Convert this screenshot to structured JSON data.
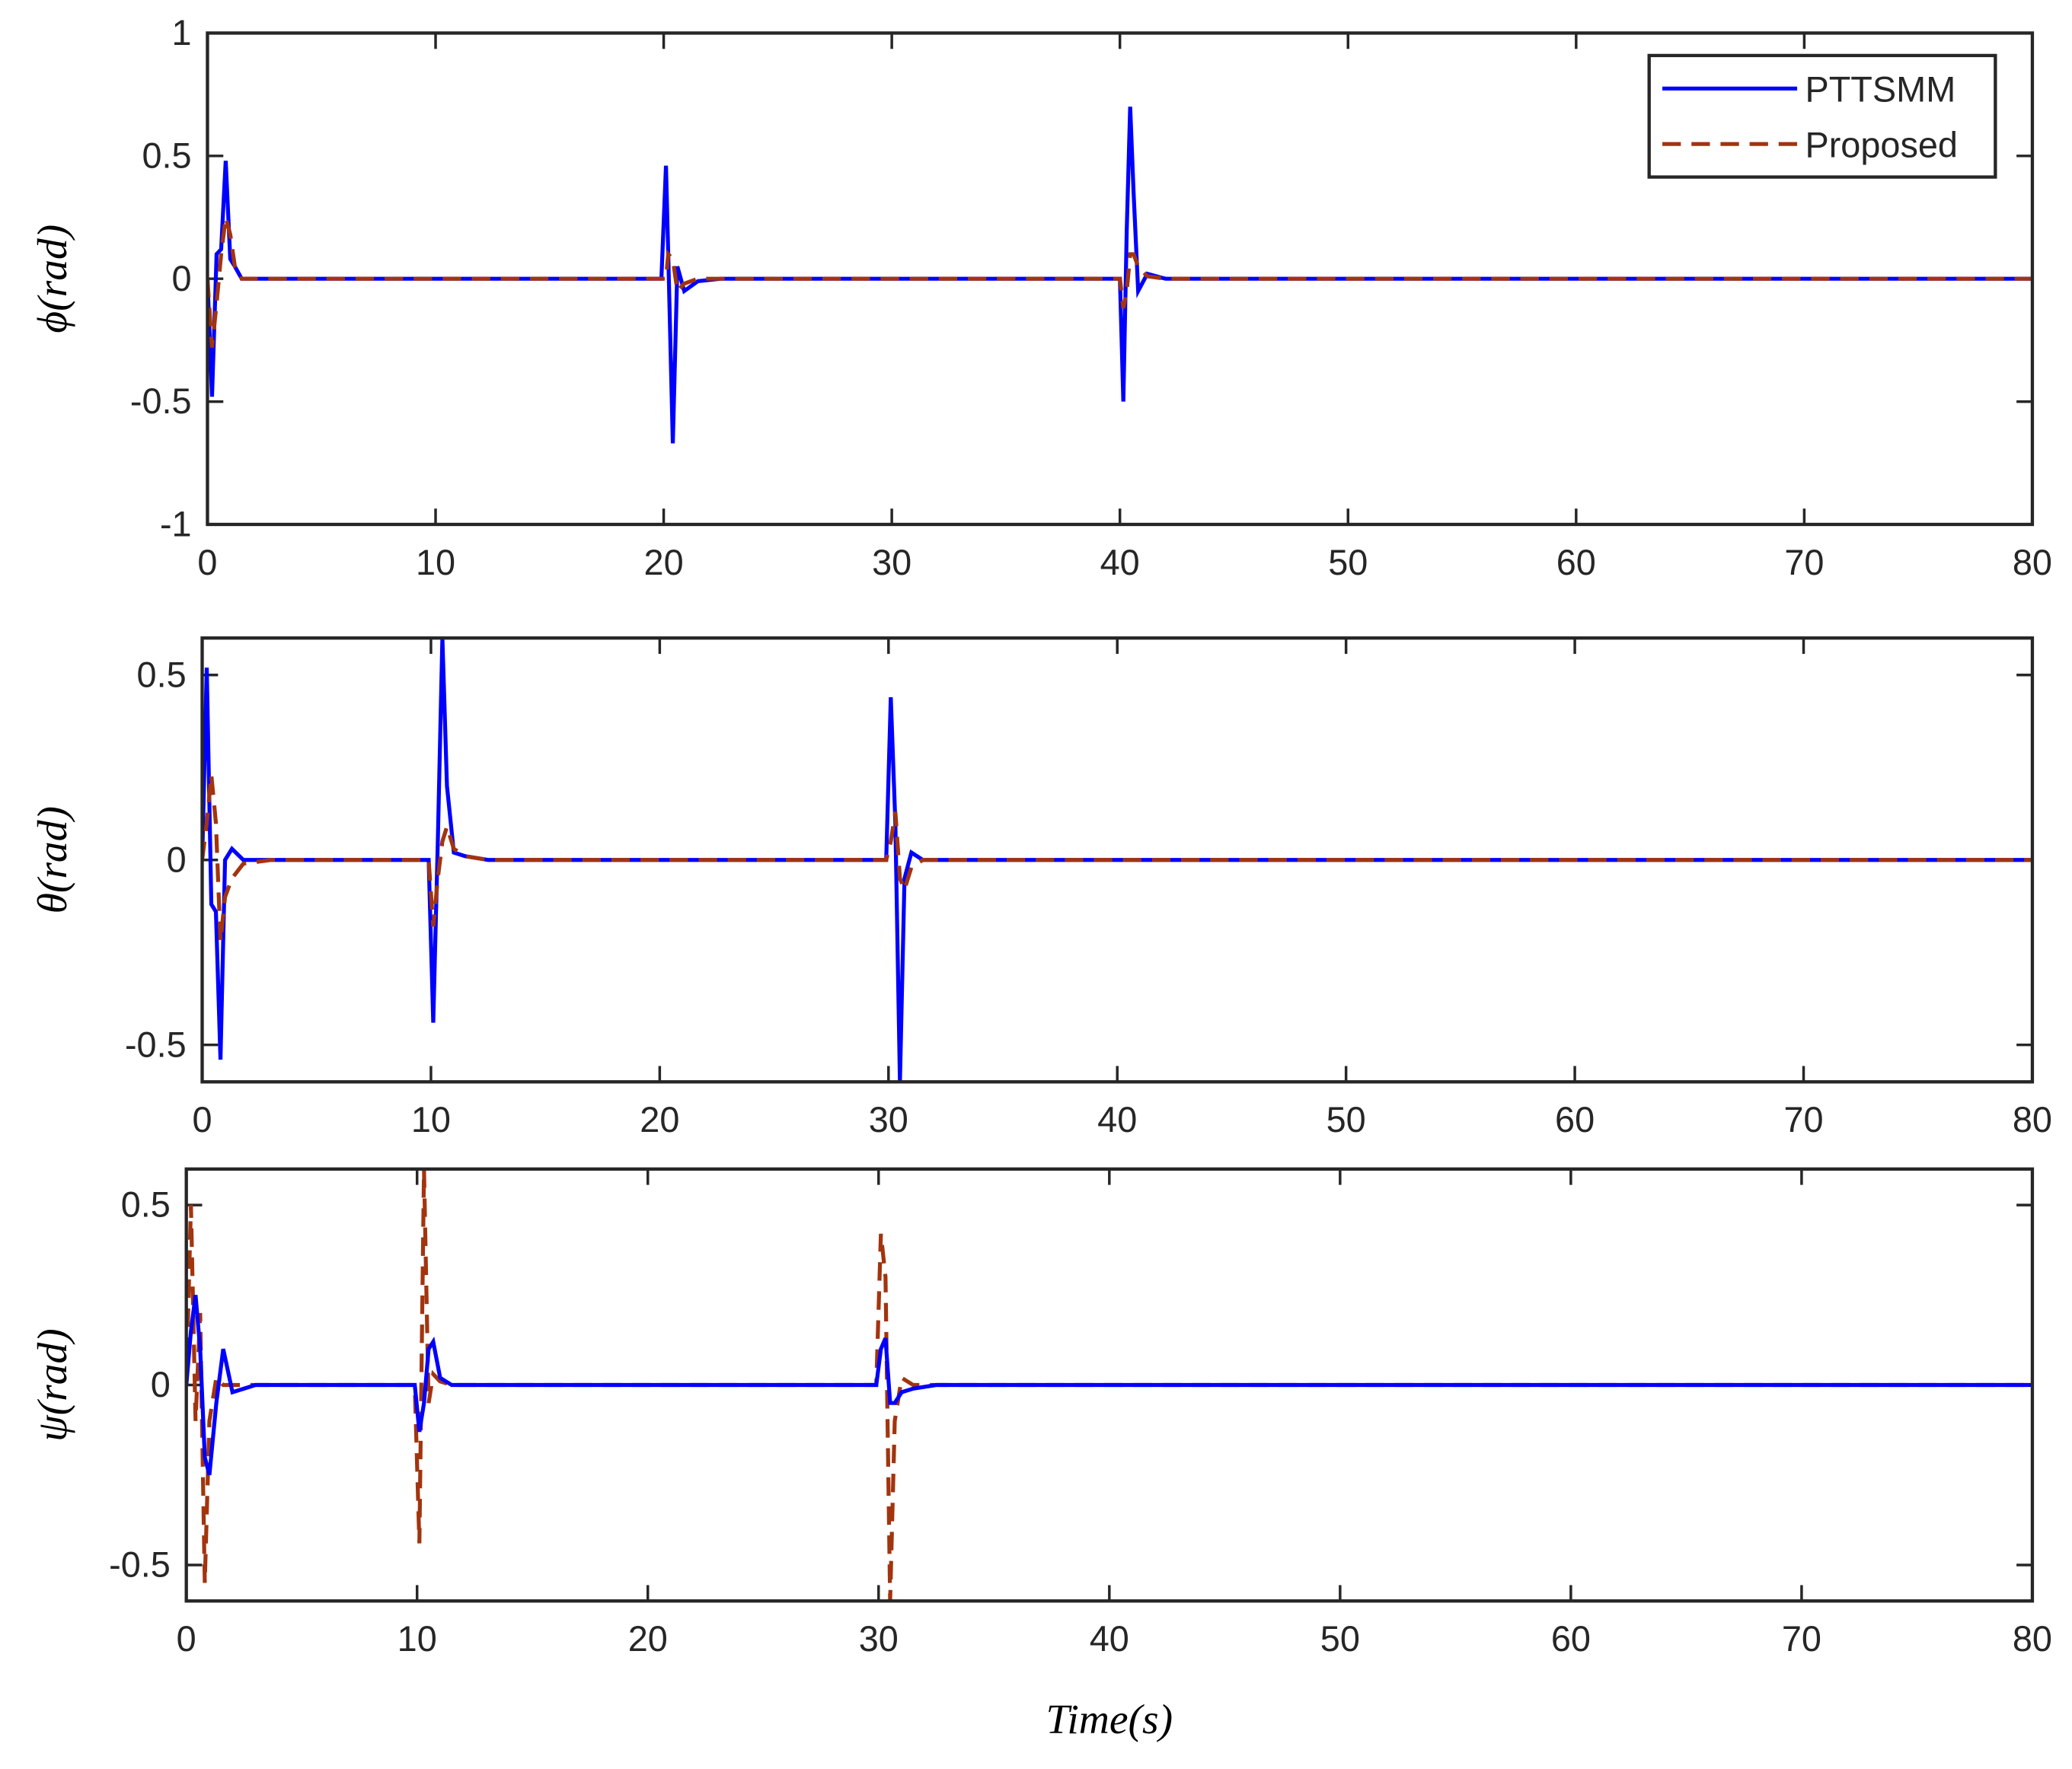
{
  "chart_data": [
    {
      "type": "line",
      "ylabel": "ϕ(rad)",
      "legend": "upper right",
      "grid": false,
      "xlim": [
        0,
        80
      ],
      "xticks": [
        0,
        10,
        20,
        30,
        40,
        50,
        60,
        70,
        80
      ],
      "ylim": [
        -1,
        1
      ],
      "yticks": [
        -1,
        -0.5,
        0,
        0.5,
        1
      ],
      "x": [
        0,
        0.2,
        0.4,
        0.6,
        0.8,
        1.0,
        1.2,
        1.5,
        2,
        3,
        10,
        19.9,
        20.1,
        20.2,
        20.4,
        20.6,
        20.9,
        21.5,
        22.5,
        40,
        40.15,
        40.3,
        40.45,
        40.6,
        40.8,
        41.2,
        42,
        80
      ],
      "series": [
        {
          "name": "PTTSMM",
          "color": "#0000ff",
          "dash": "solid",
          "values": [
            0,
            -0.48,
            0.1,
            0.12,
            0.48,
            0.08,
            0.05,
            0,
            0,
            0,
            0,
            0,
            0.46,
            0.1,
            -0.67,
            0.05,
            -0.05,
            -0.01,
            0,
            0,
            -0.5,
            0.2,
            0.7,
            0.35,
            -0.05,
            0.02,
            0,
            0
          ]
        },
        {
          "name": "Proposed",
          "color": "#a2340e",
          "dash": "dashed",
          "values": [
            0,
            -0.28,
            -0.1,
            0.1,
            0.25,
            0.18,
            0.05,
            0,
            0,
            0,
            0,
            0,
            0,
            0.1,
            0.08,
            -0.05,
            -0.02,
            0,
            0,
            0,
            -0.12,
            -0.05,
            0.1,
            0.1,
            0.05,
            0.01,
            0,
            0
          ]
        }
      ]
    },
    {
      "type": "line",
      "ylabel": "θ(rad)",
      "grid": false,
      "xlim": [
        0,
        80
      ],
      "xticks": [
        0,
        10,
        20,
        30,
        40,
        50,
        60,
        70,
        80
      ],
      "ylim": [
        -0.6,
        0.6
      ],
      "yticks": [
        -0.5,
        0,
        0.5
      ],
      "x": [
        0,
        0.2,
        0.4,
        0.6,
        0.8,
        1.0,
        1.3,
        1.8,
        3,
        9.9,
        10.1,
        10.3,
        10.5,
        10.7,
        11,
        11.5,
        12.5,
        29.9,
        30.1,
        30.3,
        30.5,
        30.7,
        31,
        31.5,
        32.5,
        80
      ],
      "series": [
        {
          "name": "PTTSMM",
          "color": "#0000ff",
          "dash": "solid",
          "values": [
            0,
            0.52,
            -0.12,
            -0.14,
            -0.54,
            0,
            0.03,
            0,
            0,
            0,
            -0.44,
            0.05,
            0.6,
            0.2,
            0.02,
            0.01,
            0,
            0,
            0.44,
            0.1,
            -0.6,
            -0.05,
            0.02,
            0,
            0,
            0
          ]
        },
        {
          "name": "Proposed",
          "color": "#a2340e",
          "dash": "dashed",
          "values": [
            0,
            0.1,
            0.23,
            0.1,
            -0.22,
            -0.1,
            -0.05,
            -0.01,
            0,
            0,
            -0.18,
            -0.05,
            0.05,
            0.09,
            0.03,
            0.01,
            0,
            0,
            0.05,
            0.13,
            -0.05,
            -0.08,
            -0.02,
            0,
            0,
            0
          ]
        }
      ]
    },
    {
      "type": "line",
      "ylabel": "ψ(rad)",
      "xlabel": "Time(s)",
      "grid": false,
      "xlim": [
        0,
        80
      ],
      "xticks": [
        0,
        10,
        20,
        30,
        40,
        50,
        60,
        70,
        80
      ],
      "ylim": [
        -0.6,
        0.6
      ],
      "yticks": [
        -0.5,
        0,
        0.5
      ],
      "x": [
        0,
        0.2,
        0.4,
        0.6,
        0.8,
        1.0,
        1.3,
        1.6,
        2,
        3,
        9.9,
        10.1,
        10.3,
        10.5,
        10.7,
        11,
        11.5,
        12.5,
        29.9,
        30.1,
        30.3,
        30.5,
        30.7,
        31,
        31.5,
        32.5,
        80
      ],
      "series": [
        {
          "name": "Proposed",
          "color": "#a2340e",
          "dash": "dashed",
          "values": [
            0,
            0.5,
            -0.1,
            0.2,
            -0.55,
            -0.1,
            0.02,
            0,
            0,
            0,
            0,
            -0.44,
            0.6,
            -0.05,
            0.03,
            0.01,
            0,
            0,
            0,
            0.42,
            0.3,
            -0.6,
            -0.1,
            0.02,
            0,
            0,
            0
          ]
        },
        {
          "name": "PTTSMM",
          "color": "#0000ff",
          "dash": "solid",
          "values": [
            0,
            0.15,
            0.25,
            0.1,
            -0.2,
            -0.25,
            -0.05,
            0.1,
            -0.02,
            0,
            0,
            -0.13,
            -0.05,
            0.1,
            0.12,
            0.02,
            0,
            0,
            0,
            0.1,
            0.13,
            -0.05,
            -0.05,
            -0.02,
            -0.01,
            0,
            0
          ]
        }
      ]
    }
  ]
}
